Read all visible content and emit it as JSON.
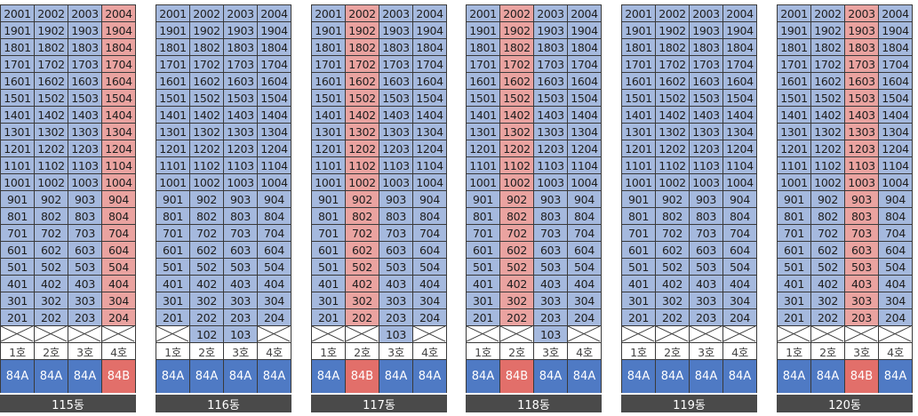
{
  "floors": [
    "20",
    "19",
    "18",
    "17",
    "16",
    "15",
    "14",
    "13",
    "12",
    "11",
    "10",
    "9",
    "8",
    "7",
    "6",
    "5",
    "4",
    "3",
    "2"
  ],
  "ho_suffix": "호",
  "colors": {
    "unit": "#a5b9de",
    "unit_highlight": "#eaa3a0",
    "type": "#4f7ac4",
    "type_highlight": "#e26f6a",
    "label_bg": "#4a4a4a"
  },
  "buildings": [
    {
      "name": "115동",
      "highlight_line": 4,
      "ground_floor": [],
      "types": [
        "84A",
        "84A",
        "84A",
        "84B"
      ]
    },
    {
      "name": "116동",
      "highlight_line": 0,
      "ground_floor": [
        2,
        3
      ],
      "types": [
        "84A",
        "84A",
        "84A",
        "84A"
      ]
    },
    {
      "name": "117동",
      "highlight_line": 2,
      "ground_floor": [
        3
      ],
      "types": [
        "84A",
        "84B",
        "84A",
        "84A"
      ]
    },
    {
      "name": "118동",
      "highlight_line": 2,
      "ground_floor": [
        3
      ],
      "types": [
        "84A",
        "84B",
        "84A",
        "84A"
      ]
    },
    {
      "name": "119동",
      "highlight_line": 0,
      "ground_floor": [],
      "types": [
        "84A",
        "84A",
        "84A",
        "84A"
      ]
    },
    {
      "name": "120동",
      "highlight_line": 3,
      "ground_floor": [],
      "types": [
        "84A",
        "84A",
        "84B",
        "84A"
      ]
    }
  ]
}
